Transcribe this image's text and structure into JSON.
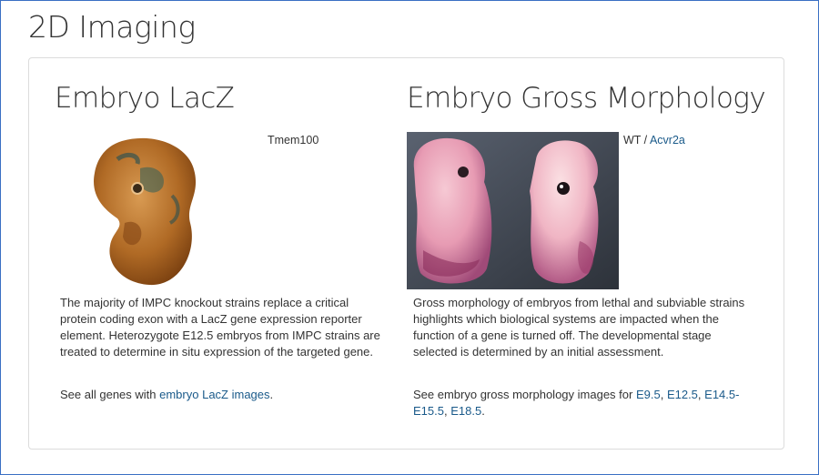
{
  "page": {
    "title": "2D Imaging"
  },
  "lacz": {
    "title": "Embryo LacZ",
    "gene_link": "Tmem100",
    "description": "The majority of IMPC knockout strains replace a critical protein coding exon with a LacZ gene expression reporter element. Heterozygote E12.5 embryos from IMPC strains are treated to determine in situ expression of the targeted gene.",
    "see_all_prefix": "See all genes with ",
    "see_all_link": "embryo LacZ images",
    "see_all_suffix": "."
  },
  "morphology": {
    "title": "Embryo Gross Morphology",
    "caption_prefix": "WT / ",
    "gene_link": "Acvr2a",
    "description": "Gross morphology of embryos from lethal and subviable strains highlights which biological systems are impacted when the function of a gene is turned off. The developmental stage selected is determined by an initial assessment.",
    "see_prefix": "See embryo gross morphology images for ",
    "stages": [
      "E9.5",
      "E12.5",
      "E14.5-E15.5",
      "E18.5"
    ],
    "sep_1": ", ",
    "sep_2": ", ",
    "sep_3": ", ",
    "see_suffix": "."
  },
  "colors": {
    "link": "#1a5a8a",
    "frame_border": "#3a6fc4",
    "panel_border": "#dcdcdc"
  }
}
